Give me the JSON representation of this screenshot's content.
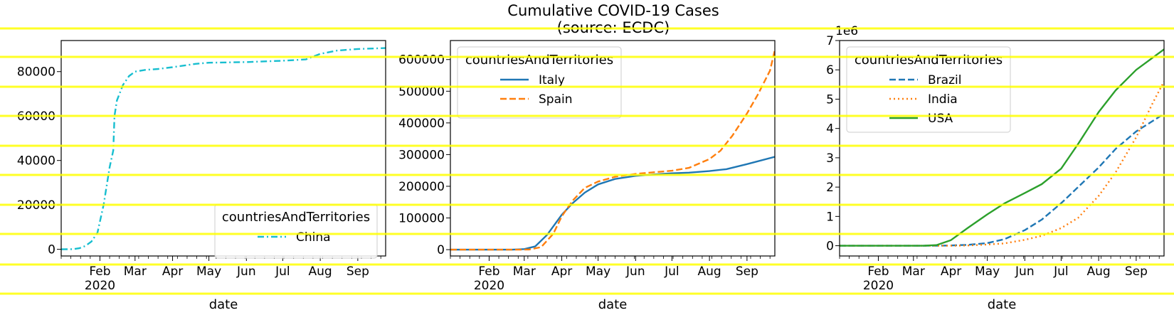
{
  "figure": {
    "title_line1": "Cumulative COVID-19 Cases",
    "title_line2": "(source: ECDC)",
    "overlay_color": "#ffff00"
  },
  "chart_data": [
    {
      "type": "line",
      "xlabel": "date",
      "x_tick_labels": [
        "Feb\n2020",
        "Mar",
        "Apr",
        "May",
        "Jun",
        "Jul",
        "Aug",
        "Sep"
      ],
      "x_tick_dates": [
        "2020-02-01",
        "2020-03-01",
        "2020-04-01",
        "2020-05-01",
        "2020-06-01",
        "2020-07-01",
        "2020-08-01",
        "2020-09-01"
      ],
      "xlim": [
        "2019-12-31",
        "2020-09-24"
      ],
      "ylim": [
        -3000,
        94000
      ],
      "y_ticks": [
        0,
        20000,
        40000,
        60000,
        80000
      ],
      "y_tick_labels": [
        "0",
        "20000",
        "40000",
        "60000",
        "80000"
      ],
      "y_offset_label": "",
      "legend": {
        "title": "countriesAndTerritories",
        "placement": "lower-right"
      },
      "series": [
        {
          "name": "China",
          "color": "#17becf",
          "dash": "dashdot",
          "x": [
            "2019-12-31",
            "2020-01-10",
            "2020-01-15",
            "2020-01-20",
            "2020-01-25",
            "2020-01-30",
            "2020-02-04",
            "2020-02-09",
            "2020-02-12",
            "2020-02-13",
            "2020-02-15",
            "2020-02-20",
            "2020-02-25",
            "2020-03-01",
            "2020-03-10",
            "2020-03-20",
            "2020-04-01",
            "2020-04-20",
            "2020-05-01",
            "2020-06-01",
            "2020-07-01",
            "2020-07-20",
            "2020-08-01",
            "2020-08-15",
            "2020-09-01",
            "2020-09-24"
          ],
          "y": [
            0,
            60,
            500,
            1500,
            3500,
            7500,
            20000,
            37000,
            44500,
            60000,
            67000,
            74000,
            78000,
            80000,
            80800,
            81200,
            82000,
            83500,
            84000,
            84300,
            84900,
            85500,
            88000,
            89500,
            90200,
            90600
          ]
        }
      ]
    },
    {
      "type": "line",
      "xlabel": "date",
      "x_tick_labels": [
        "Feb\n2020",
        "Mar",
        "Apr",
        "May",
        "Jun",
        "Jul",
        "Aug",
        "Sep"
      ],
      "x_tick_dates": [
        "2020-02-01",
        "2020-03-01",
        "2020-04-01",
        "2020-05-01",
        "2020-06-01",
        "2020-07-01",
        "2020-08-01",
        "2020-09-01"
      ],
      "xlim": [
        "2019-12-31",
        "2020-09-24"
      ],
      "ylim": [
        -20000,
        660000
      ],
      "y_ticks": [
        0,
        100000,
        200000,
        300000,
        400000,
        500000,
        600000
      ],
      "y_tick_labels": [
        "0",
        "100000",
        "200000",
        "300000",
        "400000",
        "500000",
        "600000"
      ],
      "y_offset_label": "",
      "legend": {
        "title": "countriesAndTerritories",
        "placement": "upper-left"
      },
      "series": [
        {
          "name": "Italy",
          "color": "#1f77b4",
          "dash": "solid",
          "x": [
            "2019-12-31",
            "2020-02-20",
            "2020-03-01",
            "2020-03-10",
            "2020-03-20",
            "2020-04-01",
            "2020-04-10",
            "2020-04-20",
            "2020-05-01",
            "2020-05-15",
            "2020-06-01",
            "2020-06-15",
            "2020-07-01",
            "2020-07-15",
            "2020-08-01",
            "2020-08-15",
            "2020-09-01",
            "2020-09-24"
          ],
          "y": [
            0,
            0,
            1700,
            10000,
            47000,
            110000,
            147000,
            180000,
            206000,
            223000,
            233000,
            237000,
            241000,
            243000,
            248000,
            254000,
            270000,
            293000
          ]
        },
        {
          "name": "Spain",
          "color": "#ff7f0e",
          "dash": "dashed",
          "x": [
            "2019-12-31",
            "2020-02-25",
            "2020-03-05",
            "2020-03-15",
            "2020-03-25",
            "2020-04-01",
            "2020-04-10",
            "2020-04-20",
            "2020-05-01",
            "2020-05-15",
            "2020-06-01",
            "2020-06-15",
            "2020-07-01",
            "2020-07-15",
            "2020-08-01",
            "2020-08-10",
            "2020-08-20",
            "2020-09-01",
            "2020-09-10",
            "2020-09-20",
            "2020-09-24"
          ],
          "y": [
            0,
            0,
            500,
            8000,
            50000,
            105000,
            155000,
            195000,
            215000,
            230000,
            239000,
            244000,
            249000,
            258000,
            286000,
            312000,
            360000,
            430000,
            490000,
            565000,
            630000
          ]
        }
      ]
    },
    {
      "type": "line",
      "xlabel": "date",
      "x_tick_labels": [
        "Feb\n2020",
        "Mar",
        "Apr",
        "May",
        "Jun",
        "Jul",
        "Aug",
        "Sep"
      ],
      "x_tick_dates": [
        "2020-02-01",
        "2020-03-01",
        "2020-04-01",
        "2020-05-01",
        "2020-06-01",
        "2020-07-01",
        "2020-08-01",
        "2020-09-01"
      ],
      "xlim": [
        "2019-12-31",
        "2020-09-24"
      ],
      "ylim": [
        -0.35,
        7.0
      ],
      "y_ticks": [
        0,
        1,
        2,
        3,
        4,
        5,
        6,
        7
      ],
      "y_tick_labels": [
        "0",
        "1",
        "2",
        "3",
        "4",
        "5",
        "6",
        "7"
      ],
      "y_offset_label": "1e6",
      "legend": {
        "title": "countriesAndTerritories",
        "placement": "upper-left"
      },
      "series": [
        {
          "name": "Brazil",
          "color": "#1f77b4",
          "dash": "dashed",
          "x": [
            "2019-12-31",
            "2020-03-20",
            "2020-04-01",
            "2020-04-15",
            "2020-05-01",
            "2020-05-15",
            "2020-06-01",
            "2020-06-15",
            "2020-07-01",
            "2020-07-15",
            "2020-08-01",
            "2020-08-15",
            "2020-09-01",
            "2020-09-24"
          ],
          "y": [
            0,
            0,
            0.01,
            0.03,
            0.09,
            0.22,
            0.53,
            0.89,
            1.45,
            2.0,
            2.67,
            3.3,
            3.9,
            4.5
          ]
        },
        {
          "name": "India",
          "color": "#ff7f0e",
          "dash": "dotted",
          "x": [
            "2019-12-31",
            "2020-04-01",
            "2020-04-15",
            "2020-05-01",
            "2020-05-15",
            "2020-06-01",
            "2020-06-15",
            "2020-07-01",
            "2020-07-15",
            "2020-08-01",
            "2020-08-15",
            "2020-09-01",
            "2020-09-15",
            "2020-09-24"
          ],
          "y": [
            0,
            0,
            0.01,
            0.04,
            0.08,
            0.2,
            0.34,
            0.6,
            0.95,
            1.7,
            2.5,
            3.7,
            4.9,
            5.6
          ]
        },
        {
          "name": "USA",
          "color": "#2ca02c",
          "dash": "solid",
          "x": [
            "2019-12-31",
            "2020-03-10",
            "2020-03-20",
            "2020-04-01",
            "2020-04-15",
            "2020-05-01",
            "2020-05-15",
            "2020-06-01",
            "2020-06-15",
            "2020-07-01",
            "2020-07-15",
            "2020-08-01",
            "2020-08-15",
            "2020-09-01",
            "2020-09-24"
          ],
          "y": [
            0,
            0.001,
            0.02,
            0.19,
            0.61,
            1.07,
            1.44,
            1.8,
            2.1,
            2.63,
            3.47,
            4.56,
            5.3,
            6.0,
            6.7
          ]
        }
      ]
    }
  ]
}
